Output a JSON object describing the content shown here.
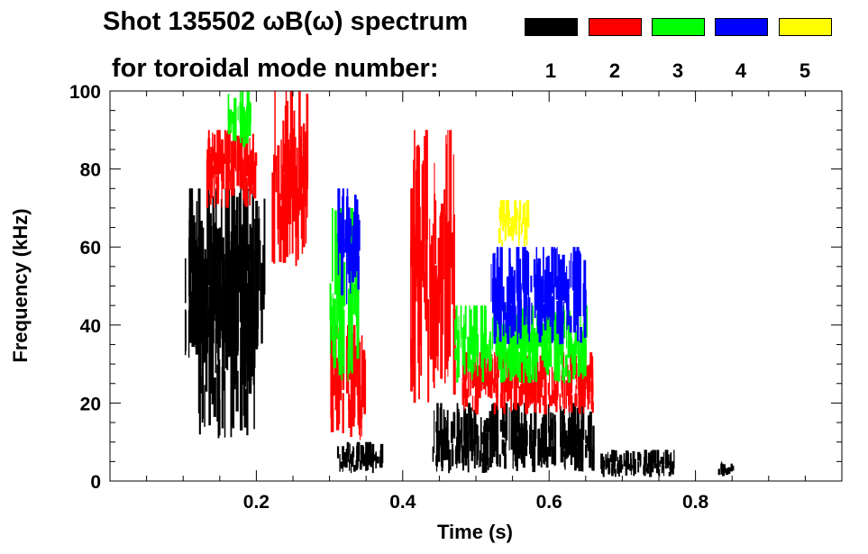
{
  "header": {
    "title_line1": "Shot 135502 ωB(ω) spectrum",
    "title_line2": "for toroidal mode number:"
  },
  "legend": {
    "items": [
      {
        "label": "1",
        "color": "#000000"
      },
      {
        "label": "2",
        "color": "#ff0000"
      },
      {
        "label": "3",
        "color": "#00ff00"
      },
      {
        "label": "4",
        "color": "#0000ff"
      },
      {
        "label": "5",
        "color": "#ffff00"
      }
    ]
  },
  "chart_data": {
    "type": "heatmap",
    "title": "Shot 135502 ωB(ω) spectrum",
    "xlabel": "Time (s)",
    "ylabel": "Frequency (kHz)",
    "xlim": [
      0.0,
      1.0
    ],
    "ylim": [
      0,
      100
    ],
    "xticks": [
      0.2,
      0.4,
      0.6,
      0.8
    ],
    "xtick_labels": [
      "0.2",
      "0.4",
      "0.6",
      "0.8"
    ],
    "yticks": [
      0,
      20,
      40,
      60,
      80,
      100
    ],
    "ytick_labels": [
      "0",
      "20",
      "40",
      "60",
      "80",
      "100"
    ],
    "series": [
      {
        "name": "n=1",
        "color": "#000000",
        "regions": [
          {
            "t": [
              0.1,
              0.21
            ],
            "f": [
              30,
              75
            ]
          },
          {
            "t": [
              0.12,
              0.2
            ],
            "f": [
              10,
              65
            ]
          },
          {
            "t": [
              0.31,
              0.37
            ],
            "f": [
              2,
              10
            ]
          },
          {
            "t": [
              0.44,
              0.66
            ],
            "f": [
              2,
              20
            ]
          },
          {
            "t": [
              0.67,
              0.77
            ],
            "f": [
              1,
              8
            ]
          },
          {
            "t": [
              0.83,
              0.85
            ],
            "f": [
              1,
              5
            ]
          }
        ]
      },
      {
        "name": "n=2",
        "color": "#ff0000",
        "regions": [
          {
            "t": [
              0.13,
              0.2
            ],
            "f": [
              70,
              90
            ]
          },
          {
            "t": [
              0.22,
              0.27
            ],
            "f": [
              55,
              100
            ]
          },
          {
            "t": [
              0.3,
              0.35
            ],
            "f": [
              10,
              40
            ]
          },
          {
            "t": [
              0.41,
              0.47
            ],
            "f": [
              20,
              90
            ]
          },
          {
            "t": [
              0.48,
              0.66
            ],
            "f": [
              17,
              33
            ]
          }
        ]
      },
      {
        "name": "n=3",
        "color": "#00ff00",
        "regions": [
          {
            "t": [
              0.16,
              0.19
            ],
            "f": [
              85,
              100
            ]
          },
          {
            "t": [
              0.3,
              0.34
            ],
            "f": [
              25,
              70
            ]
          },
          {
            "t": [
              0.47,
              0.65
            ],
            "f": [
              25,
              45
            ]
          }
        ]
      },
      {
        "name": "n=4",
        "color": "#0000ff",
        "regions": [
          {
            "t": [
              0.31,
              0.34
            ],
            "f": [
              45,
              75
            ]
          },
          {
            "t": [
              0.52,
              0.65
            ],
            "f": [
              35,
              60
            ]
          }
        ]
      },
      {
        "name": "n=5",
        "color": "#ffff00",
        "regions": [
          {
            "t": [
              0.53,
              0.57
            ],
            "f": [
              60,
              72
            ]
          }
        ]
      }
    ]
  }
}
